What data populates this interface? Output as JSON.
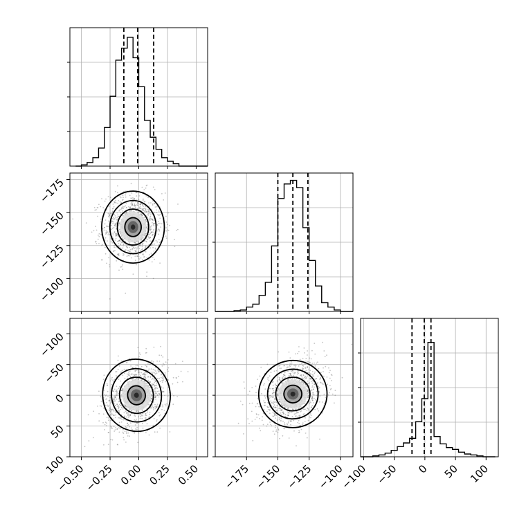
{
  "chart_data": {
    "type": "corner",
    "grid": true,
    "tick_labels": {
      "x1": [
        "−0.50",
        "−0.25",
        "0.00",
        "0.25",
        "0.50"
      ],
      "x2": [
        "−175",
        "−150",
        "−125",
        "−100"
      ],
      "x3": [
        "−100",
        "−50",
        "0",
        "50",
        "100"
      ],
      "y2": [
        "−100",
        "−125",
        "−150",
        "−175"
      ],
      "y3": [
        "100",
        "50",
        "0",
        "−50",
        "−100"
      ]
    },
    "parameters": [
      {
        "range": [
          -0.6,
          0.6
        ],
        "ticks": [
          -0.5,
          -0.25,
          0.0,
          0.25,
          0.5
        ],
        "quantiles": [
          -0.13,
          -0.01,
          0.13
        ],
        "hist_bins": [
          -0.55,
          -0.5,
          -0.45,
          -0.4,
          -0.35,
          -0.3,
          -0.25,
          -0.2,
          -0.15,
          -0.1,
          -0.05,
          0.0,
          0.05,
          0.1,
          0.15,
          0.2,
          0.25,
          0.3,
          0.35,
          0.4,
          0.45,
          0.5,
          0.55,
          0.6
        ],
        "hist_counts": [
          0,
          2,
          6,
          14,
          30,
          64,
          116,
          176,
          196,
          214,
          180,
          132,
          76,
          48,
          28,
          14,
          8,
          4,
          0,
          0,
          0,
          0,
          0
        ],
        "hist_ylim": [
          0,
          230
        ]
      },
      {
        "range": [
          -200,
          -90
        ],
        "ticks": [
          -175,
          -150,
          -125,
          -100
        ],
        "quantiles": [
          -150,
          -138,
          -126
        ],
        "hist_bins": [
          -200,
          -195,
          -190,
          -185,
          -180,
          -175,
          -170,
          -165,
          -160,
          -155,
          -150,
          -145,
          -140,
          -135,
          -130,
          -125,
          -120,
          -115,
          -110,
          -105,
          -100,
          -95,
          -90
        ],
        "hist_counts": [
          0,
          0,
          0,
          1,
          2,
          6,
          10,
          22,
          40,
          90,
          155,
          175,
          180,
          170,
          115,
          70,
          35,
          12,
          6,
          2,
          0,
          0
        ],
        "hist_ylim": [
          0,
          190
        ]
      },
      {
        "range": [
          -105,
          120
        ],
        "ticks": [
          -100,
          -50,
          0,
          50,
          100
        ],
        "quantiles": [
          -21,
          -1,
          10
        ],
        "hist_bins": [
          -105,
          -95,
          -85,
          -75,
          -65,
          -55,
          -45,
          -35,
          -25,
          -15,
          -5,
          5,
          15,
          25,
          35,
          45,
          55,
          65,
          75,
          85,
          95,
          105,
          115
        ],
        "hist_counts": [
          0,
          0,
          1,
          2,
          4,
          7,
          11,
          15,
          20,
          38,
          63,
          124,
          22,
          14,
          10,
          8,
          5,
          3,
          2,
          1,
          0,
          0
        ],
        "hist_ylim": [
          0,
          150
        ]
      }
    ],
    "pairs": [
      {
        "x": 0,
        "y": 1,
        "center": [
          -0.05,
          -136
        ],
        "sigma": [
          0.13,
          13
        ],
        "corr": 0.0,
        "ylim": [
          -200,
          -95
        ],
        "yticks": [
          -175,
          -150,
          -125,
          -100
        ]
      },
      {
        "x": 0,
        "y": 2,
        "center": [
          -0.02,
          0
        ],
        "sigma": [
          0.14,
          28
        ],
        "corr": 0.3,
        "ylim": [
          -100,
          125
        ],
        "yticks": [
          -100,
          -50,
          0,
          50,
          100
        ]
      },
      {
        "x": 1,
        "y": 2,
        "center": [
          -138,
          2
        ],
        "sigma": [
          13,
          26
        ],
        "corr": 0.28,
        "ylim": [
          -100,
          125
        ],
        "yticks": [
          -100,
          -50,
          0,
          50,
          100
        ]
      }
    ],
    "colors": {
      "line": "#000000",
      "grid": "#b0b0b0",
      "scatter": "#555555"
    }
  }
}
